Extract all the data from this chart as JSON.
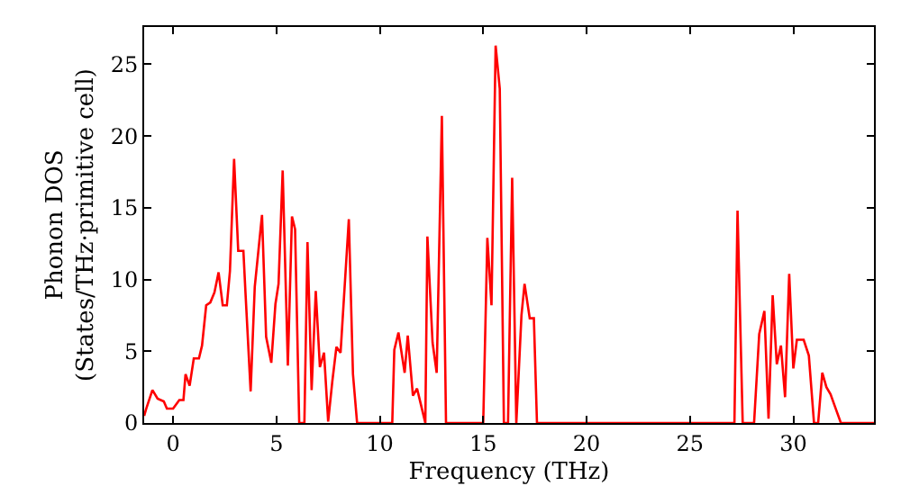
{
  "chart_data": {
    "type": "line",
    "xlabel": "Frequency (THz)",
    "ylabel": "Phonon DOS\n(States/THz·primitive cell)",
    "xlim": [
      -1.4,
      33.9
    ],
    "ylim": [
      0,
      27.6
    ],
    "xticks": [
      0,
      5,
      10,
      15,
      20,
      25,
      30
    ],
    "yticks": [
      0,
      5,
      10,
      15,
      20,
      25
    ],
    "marker": "none",
    "line_style": "solid",
    "series": [
      {
        "color": "#ff0000",
        "x": [
          -1.4,
          -1.3,
          -1.0,
          -0.75,
          -0.45,
          -0.3,
          0.0,
          0.3,
          0.5,
          0.6,
          0.8,
          1.0,
          1.25,
          1.4,
          1.6,
          1.8,
          2.0,
          2.2,
          2.4,
          2.6,
          2.75,
          2.95,
          3.15,
          3.4,
          3.5,
          3.75,
          3.95,
          4.3,
          4.5,
          4.75,
          4.95,
          5.1,
          5.3,
          5.55,
          5.75,
          5.9,
          6.1,
          6.35,
          6.5,
          6.7,
          6.9,
          7.1,
          7.3,
          7.5,
          7.7,
          7.9,
          8.1,
          8.5,
          8.7,
          8.9,
          10.6,
          10.7,
          10.9,
          11.2,
          11.35,
          11.6,
          11.8,
          12.0,
          12.2,
          12.3,
          12.55,
          12.75,
          13.0,
          13.2,
          15.0,
          15.2,
          15.4,
          15.6,
          15.8,
          16.0,
          16.2,
          16.4,
          16.6,
          16.85,
          17.0,
          17.25,
          17.45,
          17.6,
          27.15,
          27.3,
          27.55,
          28.1,
          28.35,
          28.6,
          28.8,
          29.0,
          29.2,
          29.4,
          29.6,
          29.8,
          30.0,
          30.17,
          30.5,
          30.75,
          31.0,
          31.2,
          31.4,
          31.6,
          31.8,
          32.0,
          32.3,
          33.9
        ],
        "values": [
          0.5,
          1.0,
          2.3,
          1.7,
          1.5,
          1.0,
          1.0,
          1.6,
          1.6,
          3.4,
          2.6,
          4.5,
          4.5,
          5.4,
          8.2,
          8.4,
          9.1,
          10.5,
          8.2,
          8.2,
          10.6,
          18.4,
          12.0,
          12.0,
          9.1,
          2.2,
          9.5,
          14.5,
          6.0,
          4.2,
          8.3,
          9.7,
          17.6,
          4.0,
          14.4,
          13.5,
          0,
          0,
          12.6,
          2.3,
          9.2,
          3.9,
          4.9,
          0.1,
          2.9,
          5.3,
          4.9,
          14.2,
          3.4,
          0,
          0,
          5.1,
          6.3,
          3.5,
          6.1,
          1.9,
          2.4,
          1.2,
          0,
          13.0,
          5.6,
          3.5,
          21.4,
          0,
          0,
          12.9,
          8.2,
          26.3,
          23.3,
          0,
          0,
          17.1,
          0,
          7.5,
          9.7,
          7.3,
          7.3,
          0,
          0,
          14.8,
          0,
          0,
          6.2,
          7.8,
          0.3,
          8.9,
          4.1,
          5.4,
          1.8,
          10.4,
          3.8,
          5.8,
          5.8,
          4.7,
          0,
          0,
          3.5,
          2.5,
          2.0,
          1.2,
          0,
          0
        ]
      }
    ]
  }
}
